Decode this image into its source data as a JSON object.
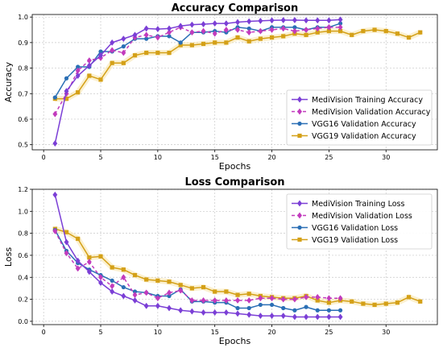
{
  "chart_data": [
    {
      "type": "line",
      "title": "Accuracy Comparison",
      "xlabel": "Epochs",
      "ylabel": "Accuracy",
      "xlim": [
        -1,
        34.5
      ],
      "ylim": [
        0.48,
        1.01
      ],
      "xticks": [
        0,
        5,
        10,
        15,
        20,
        25,
        30
      ],
      "yticks": [
        0.5,
        0.6,
        0.7,
        0.8,
        0.9,
        1.0
      ],
      "ytick_labels": [
        "0.5",
        "0.6",
        "0.7",
        "0.8",
        "0.9",
        "1.0"
      ],
      "grid": true,
      "legend": "lower-right",
      "series": [
        {
          "name": "MediVision Training Accuracy",
          "color": "#7b3fd6",
          "marker": "diamond",
          "dash": "solid",
          "x": [
            1,
            2,
            3,
            4,
            5,
            6,
            7,
            8,
            9,
            10,
            11,
            12,
            13,
            14,
            15,
            16,
            17,
            18,
            19,
            20,
            21,
            22,
            23,
            24,
            25,
            26
          ],
          "y": [
            0.505,
            0.71,
            0.77,
            0.81,
            0.85,
            0.9,
            0.915,
            0.93,
            0.955,
            0.953,
            0.955,
            0.965,
            0.97,
            0.972,
            0.975,
            0.975,
            0.98,
            0.983,
            0.985,
            0.987,
            0.988,
            0.988,
            0.987,
            0.987,
            0.987,
            0.99
          ]
        },
        {
          "name": "MediVision Validation Accuracy",
          "color": "#c23bbd",
          "marker": "diamond",
          "dash": "dashed",
          "x": [
            1,
            2,
            3,
            4,
            5,
            6,
            7,
            8,
            9,
            10,
            11,
            12,
            13,
            14,
            15,
            16,
            17,
            18,
            19,
            20,
            21,
            22,
            23,
            24,
            25,
            26
          ],
          "y": [
            0.62,
            0.7,
            0.79,
            0.83,
            0.84,
            0.87,
            0.86,
            0.92,
            0.93,
            0.92,
            0.94,
            0.96,
            0.94,
            0.945,
            0.935,
            0.95,
            0.95,
            0.94,
            0.945,
            0.95,
            0.955,
            0.945,
            0.95,
            0.955,
            0.96,
            0.96
          ]
        },
        {
          "name": "VGG16 Validation Accuracy",
          "color": "#2a6fb5",
          "marker": "circle",
          "dash": "solid",
          "x": [
            1,
            2,
            3,
            4,
            5,
            6,
            7,
            8,
            9,
            10,
            11,
            12,
            13,
            14,
            15,
            16,
            17,
            18,
            19,
            20,
            21,
            22,
            23,
            24,
            25,
            26
          ],
          "y": [
            0.685,
            0.76,
            0.805,
            0.805,
            0.865,
            0.865,
            0.885,
            0.915,
            0.915,
            0.925,
            0.925,
            0.9,
            0.94,
            0.94,
            0.945,
            0.94,
            0.96,
            0.955,
            0.945,
            0.96,
            0.96,
            0.96,
            0.95,
            0.96,
            0.96,
            0.975
          ]
        },
        {
          "name": "VGG19 Validation Accuracy",
          "color": "#d4a017",
          "marker": "square",
          "dash": "solid",
          "x": [
            1,
            2,
            3,
            4,
            5,
            6,
            7,
            8,
            9,
            10,
            11,
            12,
            13,
            14,
            15,
            16,
            17,
            18,
            19,
            20,
            21,
            22,
            23,
            24,
            25,
            26,
            27,
            28,
            29,
            30,
            31,
            32,
            33
          ],
          "y": [
            0.68,
            0.68,
            0.705,
            0.77,
            0.755,
            0.82,
            0.82,
            0.85,
            0.86,
            0.86,
            0.86,
            0.89,
            0.89,
            0.895,
            0.9,
            0.9,
            0.92,
            0.905,
            0.915,
            0.92,
            0.925,
            0.935,
            0.93,
            0.94,
            0.945,
            0.945,
            0.93,
            0.945,
            0.95,
            0.945,
            0.935,
            0.92,
            0.94
          ]
        }
      ]
    },
    {
      "type": "line",
      "title": "Loss Comparison",
      "xlabel": "Epochs",
      "ylabel": "Loss",
      "xlim": [
        -1,
        34.5
      ],
      "ylim": [
        -0.03,
        1.2
      ],
      "xticks": [
        0,
        5,
        10,
        15,
        20,
        25,
        30
      ],
      "yticks": [
        0.0,
        0.2,
        0.4,
        0.6,
        0.8,
        1.0,
        1.2
      ],
      "ytick_labels": [
        "0.0",
        "0.2",
        "0.4",
        "0.6",
        "0.8",
        "1.0",
        "1.2"
      ],
      "grid": true,
      "legend": "upper-right",
      "series": [
        {
          "name": "MediVision Training Loss",
          "color": "#7b3fd6",
          "marker": "diamond",
          "dash": "solid",
          "x": [
            1,
            2,
            3,
            4,
            5,
            6,
            7,
            8,
            9,
            10,
            11,
            12,
            13,
            14,
            15,
            16,
            17,
            18,
            19,
            20,
            21,
            22,
            23,
            24,
            25,
            26
          ],
          "y": [
            1.15,
            0.72,
            0.55,
            0.45,
            0.35,
            0.27,
            0.23,
            0.19,
            0.14,
            0.14,
            0.12,
            0.1,
            0.09,
            0.08,
            0.08,
            0.08,
            0.07,
            0.06,
            0.05,
            0.05,
            0.05,
            0.04,
            0.04,
            0.04,
            0.04,
            0.04
          ]
        },
        {
          "name": "MediVision Validation Loss",
          "color": "#c23bbd",
          "marker": "diamond",
          "dash": "dashed",
          "x": [
            1,
            2,
            3,
            4,
            5,
            6,
            7,
            8,
            9,
            10,
            11,
            12,
            13,
            14,
            15,
            16,
            17,
            18,
            19,
            20,
            21,
            22,
            23,
            24,
            25,
            26
          ],
          "y": [
            0.82,
            0.62,
            0.48,
            0.54,
            0.4,
            0.32,
            0.4,
            0.24,
            0.26,
            0.21,
            0.26,
            0.28,
            0.19,
            0.19,
            0.19,
            0.19,
            0.19,
            0.19,
            0.21,
            0.21,
            0.2,
            0.2,
            0.22,
            0.22,
            0.21,
            0.21
          ]
        },
        {
          "name": "VGG16 Validation Loss",
          "color": "#2a6fb5",
          "marker": "circle",
          "dash": "solid",
          "x": [
            1,
            2,
            3,
            4,
            5,
            6,
            7,
            8,
            9,
            10,
            11,
            12,
            13,
            14,
            15,
            16,
            17,
            18,
            19,
            20,
            21,
            22,
            23,
            24,
            25,
            26
          ],
          "y": [
            0.83,
            0.64,
            0.53,
            0.47,
            0.42,
            0.37,
            0.31,
            0.27,
            0.26,
            0.23,
            0.23,
            0.29,
            0.18,
            0.18,
            0.17,
            0.17,
            0.12,
            0.12,
            0.15,
            0.15,
            0.12,
            0.1,
            0.13,
            0.1,
            0.1,
            0.1
          ]
        },
        {
          "name": "VGG19 Validation Loss",
          "color": "#d4a017",
          "marker": "square",
          "dash": "solid",
          "x": [
            1,
            2,
            3,
            4,
            5,
            6,
            7,
            8,
            9,
            10,
            11,
            12,
            13,
            14,
            15,
            16,
            17,
            18,
            19,
            20,
            21,
            22,
            23,
            24,
            25,
            26,
            27,
            28,
            29,
            30,
            31,
            32,
            33
          ],
          "y": [
            0.84,
            0.81,
            0.75,
            0.58,
            0.59,
            0.49,
            0.47,
            0.42,
            0.38,
            0.37,
            0.36,
            0.33,
            0.3,
            0.31,
            0.27,
            0.27,
            0.24,
            0.25,
            0.23,
            0.22,
            0.21,
            0.21,
            0.23,
            0.19,
            0.17,
            0.19,
            0.18,
            0.16,
            0.15,
            0.16,
            0.17,
            0.22,
            0.18
          ]
        }
      ]
    }
  ]
}
